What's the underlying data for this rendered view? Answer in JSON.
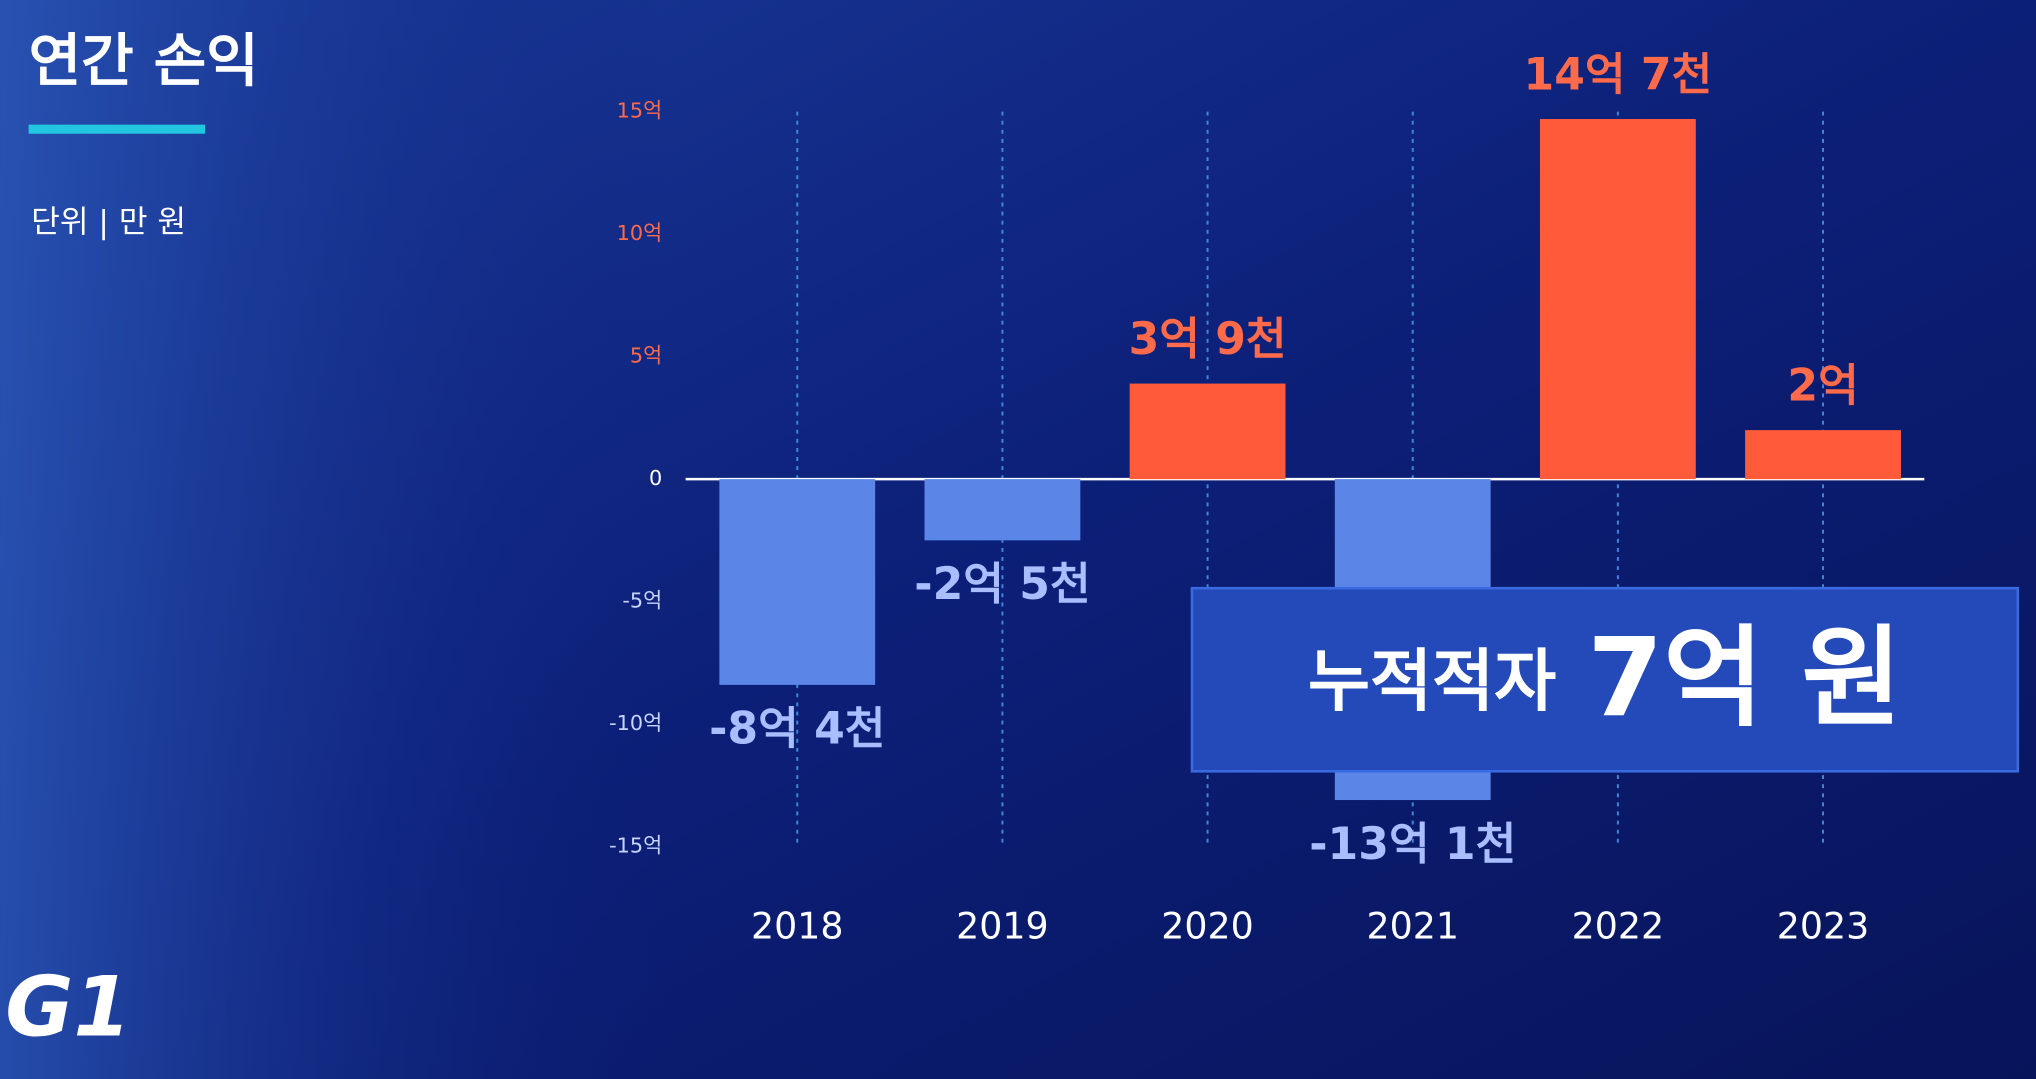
{
  "title": "연간 손익",
  "unit_note": "단위 | 만 원",
  "logo": "G1",
  "annotation": {
    "label": "누적적자",
    "amount": "7억 원"
  },
  "chart_data": {
    "type": "bar",
    "categories": [
      "2018",
      "2019",
      "2020",
      "2021",
      "2022",
      "2023"
    ],
    "values": [
      -8.4,
      -2.5,
      3.9,
      -13.1,
      14.7,
      2
    ],
    "value_labels": [
      "-8억 4천",
      "-2억 5천",
      "3억 9천",
      "-13억 1천",
      "14억 7천",
      "2억"
    ],
    "positive_color": "#ff5a3a",
    "negative_color": "#5b86e8",
    "ylim": [
      -15,
      15
    ],
    "yticks": [
      {
        "value": 15,
        "label": "15억"
      },
      {
        "value": 10,
        "label": "10억"
      },
      {
        "value": 5,
        "label": "5억"
      },
      0,
      {
        "value": -5,
        "label": "-5억"
      },
      {
        "value": -10,
        "label": "-10억"
      },
      {
        "value": -15,
        "label": "-15억"
      }
    ]
  }
}
